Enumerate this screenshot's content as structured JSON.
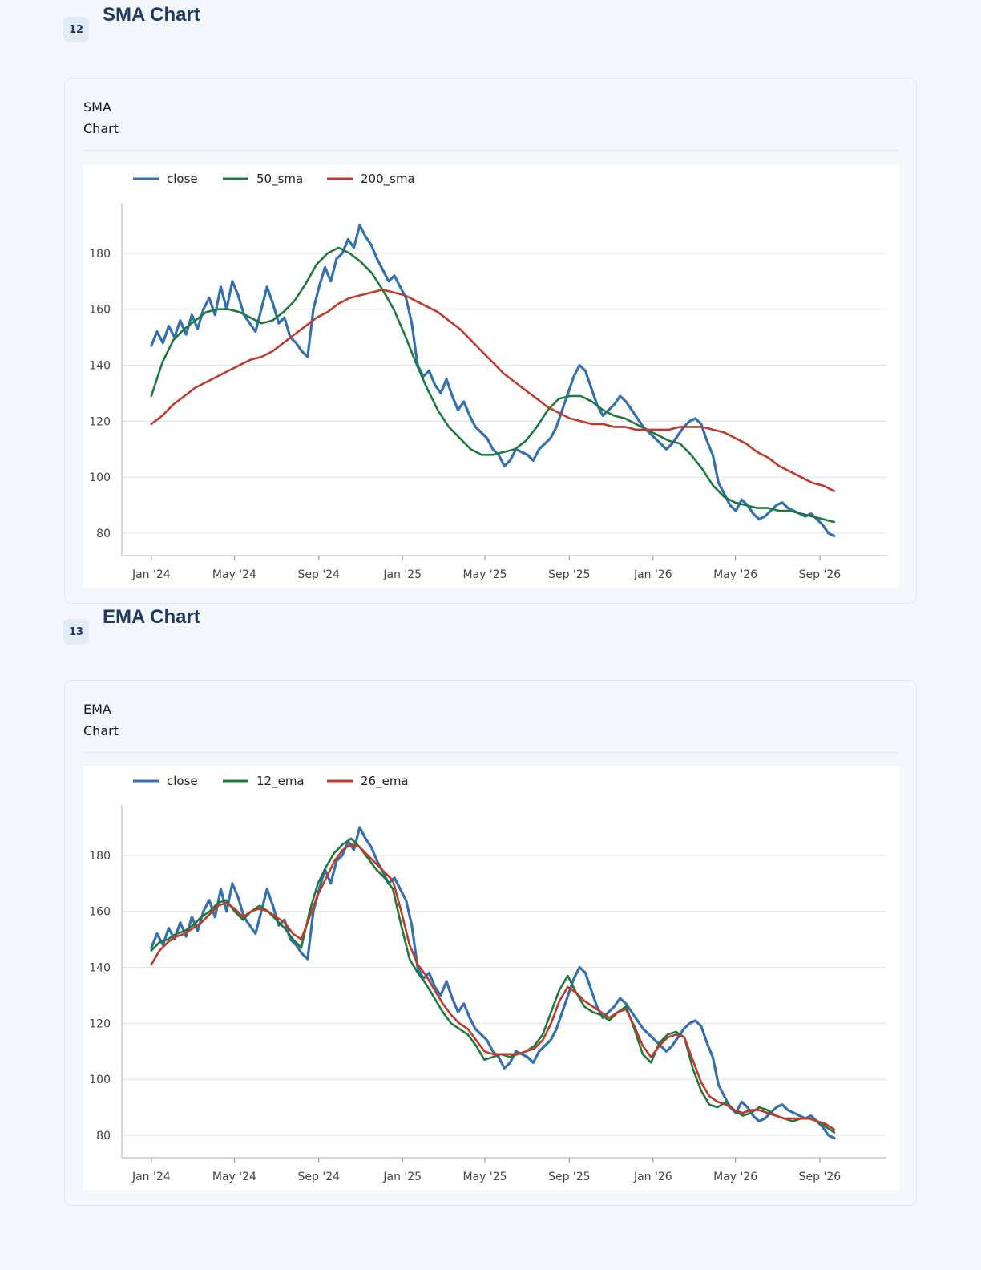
{
  "sections": [
    {
      "number": "12",
      "heading": "SMA Chart",
      "card_title": "SMA Chart",
      "chart_data": {
        "type": "line",
        "title": "",
        "xlabel": "",
        "ylabel": "",
        "x_ticks": [
          "Jan '24",
          "May '24",
          "Sep '24",
          "Jan '25",
          "May '25",
          "Sep '25",
          "Jan '26",
          "May '26",
          "Sep '26"
        ],
        "y_ticks": [
          80,
          100,
          120,
          140,
          160,
          180
        ],
        "xlim": [
          "2023-11-19",
          "2026-12-07"
        ],
        "ylim": [
          72,
          198
        ],
        "grid": "horizontal",
        "legend": "top-left",
        "series": [
          {
            "name": "close",
            "color": "#3370b0",
            "x_start": "2024-01-01",
            "x_end": "2026-09-22",
            "values": [
              147,
              152,
              148,
              154,
              150,
              156,
              151,
              158,
              153,
              160,
              164,
              158,
              168,
              160,
              170,
              165,
              158,
              155,
              152,
              160,
              168,
              162,
              155,
              157,
              150,
              148,
              145,
              143,
              160,
              168,
              175,
              170,
              178,
              180,
              185,
              182,
              190,
              186,
              183,
              178,
              174,
              170,
              172,
              168,
              164,
              155,
              140,
              136,
              138,
              133,
              130,
              135,
              129,
              124,
              127,
              122,
              118,
              116,
              114,
              110,
              108,
              104,
              106,
              110,
              109,
              108,
              106,
              110,
              112,
              114,
              118,
              124,
              130,
              136,
              140,
              138,
              132,
              126,
              122,
              124,
              126,
              129,
              127,
              124,
              121,
              118,
              116,
              114,
              112,
              110,
              112,
              115,
              118,
              120,
              121,
              119,
              113,
              108,
              98,
              94,
              90,
              88,
              92,
              90,
              87,
              85,
              86,
              88,
              90,
              91,
              89,
              88,
              87,
              86,
              87,
              85,
              83,
              80,
              79
            ]
          },
          {
            "name": "50_sma",
            "color": "#1e7a3c",
            "x_start": "2024-01-01",
            "x_end": "2026-09-22",
            "values": [
              129,
              141,
              149,
              153,
              156,
              159,
              160,
              160,
              159,
              157,
              155,
              156,
              159,
              163,
              169,
              176,
              180,
              182,
              180,
              177,
              173,
              167,
              160,
              151,
              141,
              132,
              124,
              118,
              114,
              110,
              108,
              108,
              109,
              110,
              113,
              118,
              124,
              128,
              129,
              129,
              127,
              124,
              122,
              121,
              119,
              117,
              115,
              113,
              112,
              108,
              103,
              97,
              93,
              91,
              90,
              89,
              89,
              88,
              88,
              87,
              86,
              85,
              84
            ]
          },
          {
            "name": "200_sma",
            "color": "#c03a2b",
            "x_start": "2024-01-01",
            "x_end": "2026-09-22",
            "values": [
              119,
              122,
              126,
              129,
              132,
              134,
              136,
              138,
              140,
              142,
              143,
              145,
              148,
              151,
              154,
              157,
              159,
              162,
              164,
              165,
              166,
              167,
              166,
              165,
              163,
              161,
              159,
              156,
              153,
              149,
              145,
              141,
              137,
              134,
              131,
              128,
              125,
              123,
              121,
              120,
              119,
              119,
              118,
              118,
              117,
              117,
              117,
              117,
              118,
              118,
              118,
              117,
              116,
              114,
              112,
              109,
              107,
              104,
              102,
              100,
              98,
              97,
              95
            ]
          }
        ]
      }
    },
    {
      "number": "13",
      "heading": "EMA Chart",
      "card_title": "EMA Chart",
      "chart_data": {
        "type": "line",
        "title": "",
        "xlabel": "",
        "ylabel": "",
        "x_ticks": [
          "Jan '24",
          "May '24",
          "Sep '24",
          "Jan '25",
          "May '25",
          "Sep '25",
          "Jan '26",
          "May '26",
          "Sep '26"
        ],
        "y_ticks": [
          80,
          100,
          120,
          140,
          160,
          180
        ],
        "xlim": [
          "2023-11-19",
          "2026-12-07"
        ],
        "ylim": [
          72,
          198
        ],
        "grid": "horizontal",
        "legend": "top-left",
        "series": [
          {
            "name": "close",
            "color": "#3370b0",
            "x_start": "2024-01-01",
            "x_end": "2026-09-22",
            "values": [
              147,
              152,
              148,
              154,
              150,
              156,
              151,
              158,
              153,
              160,
              164,
              158,
              168,
              160,
              170,
              165,
              158,
              155,
              152,
              160,
              168,
              162,
              155,
              157,
              150,
              148,
              145,
              143,
              160,
              168,
              175,
              170,
              178,
              180,
              185,
              182,
              190,
              186,
              183,
              178,
              174,
              170,
              172,
              168,
              164,
              155,
              140,
              136,
              138,
              133,
              130,
              135,
              129,
              124,
              127,
              122,
              118,
              116,
              114,
              110,
              108,
              104,
              106,
              110,
              109,
              108,
              106,
              110,
              112,
              114,
              118,
              124,
              130,
              136,
              140,
              138,
              132,
              126,
              122,
              124,
              126,
              129,
              127,
              124,
              121,
              118,
              116,
              114,
              112,
              110,
              112,
              115,
              118,
              120,
              121,
              119,
              113,
              108,
              98,
              94,
              90,
              88,
              92,
              90,
              87,
              85,
              86,
              88,
              90,
              91,
              89,
              88,
              87,
              86,
              87,
              85,
              83,
              80,
              79
            ]
          },
          {
            "name": "12_ema",
            "color": "#1e7a3c",
            "x_start": "2024-01-01",
            "x_end": "2026-09-22",
            "values": [
              146,
              149,
              150,
              152,
              153,
              155,
              158,
              160,
              163,
              164,
              160,
              157,
              160,
              162,
              160,
              157,
              154,
              150,
              147,
              160,
              170,
              176,
              181,
              184,
              186,
              183,
              179,
              175,
              172,
              168,
              155,
              143,
              138,
              134,
              129,
              124,
              120,
              118,
              116,
              112,
              107,
              108,
              109,
              108,
              109,
              110,
              112,
              116,
              124,
              132,
              137,
              131,
              126,
              124,
              123,
              121,
              124,
              126,
              118,
              109,
              106,
              113,
              116,
              117,
              115,
              104,
              96,
              91,
              90,
              92,
              89,
              87,
              88,
              90,
              89,
              87,
              86,
              85,
              86,
              86,
              85,
              83,
              81
            ]
          },
          {
            "name": "26_ema",
            "color": "#c03a2b",
            "x_start": "2024-01-01",
            "x_end": "2026-09-22",
            "values": [
              141,
              146,
              149,
              151,
              152,
              154,
              156,
              159,
              162,
              163,
              161,
              158,
              160,
              161,
              160,
              158,
              156,
              152,
              150,
              158,
              166,
              172,
              178,
              182,
              184,
              183,
              180,
              177,
              174,
              171,
              160,
              148,
              141,
              137,
              132,
              127,
              123,
              120,
              118,
              114,
              110,
              109,
              109,
              109,
              109,
              110,
              111,
              114,
              120,
              128,
              133,
              131,
              128,
              126,
              124,
              122,
              124,
              125,
              119,
              112,
              108,
              112,
              115,
              116,
              115,
              107,
              99,
              94,
              92,
              91,
              89,
              88,
              89,
              89,
              88,
              87,
              86,
              86,
              86,
              86,
              85,
              84,
              82
            ]
          }
        ]
      }
    }
  ]
}
